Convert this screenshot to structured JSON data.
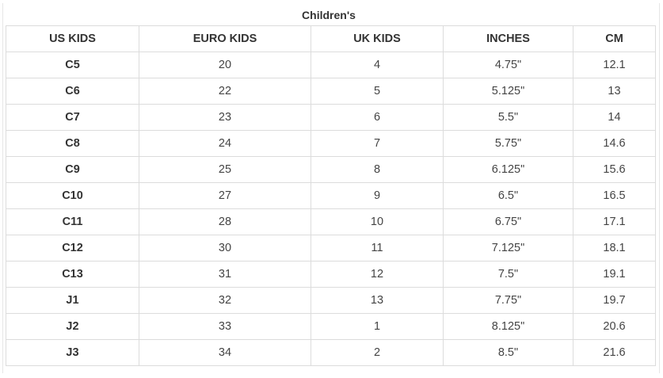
{
  "caption": "Children's",
  "columns": [
    "US KIDS",
    "EURO KIDS",
    "UK KIDS",
    "INCHES",
    "CM"
  ],
  "rows": [
    [
      "C5",
      "20",
      "4",
      "4.75\"",
      "12.1"
    ],
    [
      "C6",
      "22",
      "5",
      "5.125\"",
      "13"
    ],
    [
      "C7",
      "23",
      "6",
      "5.5\"",
      "14"
    ],
    [
      "C8",
      "24",
      "7",
      "5.75\"",
      "14.6"
    ],
    [
      "C9",
      "25",
      "8",
      "6.125\"",
      "15.6"
    ],
    [
      "C10",
      "27",
      "9",
      "6.5\"",
      "16.5"
    ],
    [
      "C11",
      "28",
      "10",
      "6.75\"",
      "17.1"
    ],
    [
      "C12",
      "30",
      "11",
      "7.125\"",
      "18.1"
    ],
    [
      "C13",
      "31",
      "12",
      "7.5\"",
      "19.1"
    ],
    [
      "J1",
      "32",
      "13",
      "7.75\"",
      "19.7"
    ],
    [
      "J2",
      "33",
      "1",
      "8.125\"",
      "20.6"
    ],
    [
      "J3",
      "34",
      "2",
      "8.5\"",
      "21.6"
    ]
  ]
}
